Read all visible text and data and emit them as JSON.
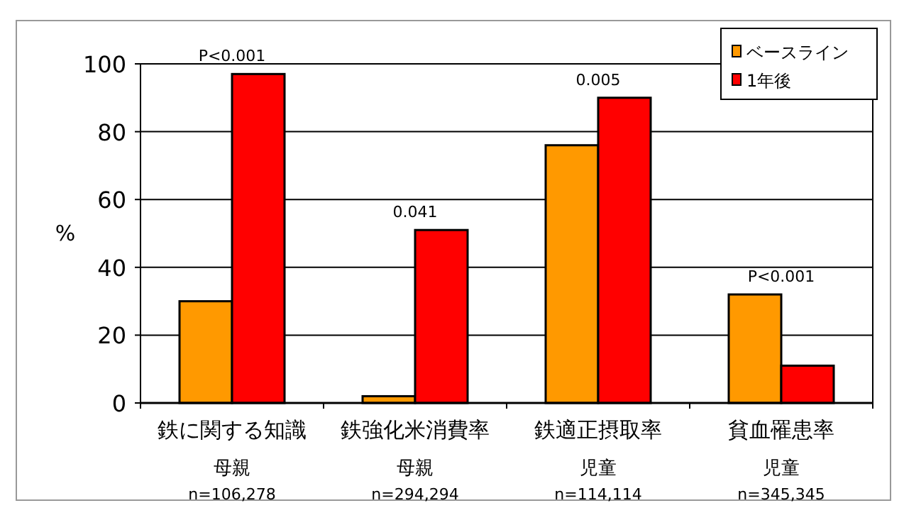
{
  "chart_data": {
    "type": "bar",
    "ylabel": "%",
    "categories": [
      "鉄に関する知識",
      "鉄強化米消費率",
      "鉄適正摂取率",
      "貧血罹患率"
    ],
    "series": [
      {
        "name": "ベースライン",
        "color": "#ff9900",
        "values": [
          30,
          2,
          76,
          32
        ]
      },
      {
        "name": "1年後",
        "color": "#ff0000",
        "values": [
          97,
          51,
          90,
          11
        ]
      }
    ],
    "annotations": [
      {
        "text": "P<0.001",
        "x": "鉄に関する知識",
        "y": 97
      },
      {
        "text": "0.041",
        "x": "鉄強化米消費率",
        "y": 51
      },
      {
        "text": "0.005",
        "x": "鉄適正摂取率",
        "y": 90
      },
      {
        "text": "P<0.001",
        "x": "貧血罹患率",
        "y": 32
      },
      "母親\nn=106,278",
      "母親\nn=294,294",
      "児童\nn=114,114",
      "児童\nn=345,345"
    ],
    "ylim": [
      0,
      100
    ],
    "yticks": [
      0,
      20,
      40,
      60,
      80,
      100
    ],
    "grid": "y",
    "legend": "top right"
  }
}
